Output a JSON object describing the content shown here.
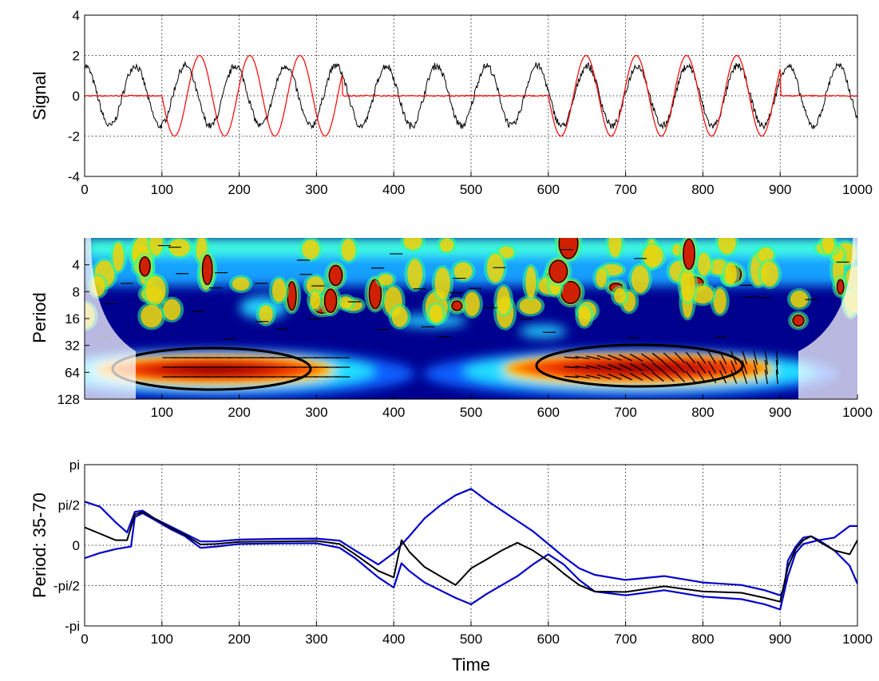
{
  "chart_data": [
    {
      "type": "line",
      "ylabel": "Signal",
      "xlabel": "",
      "xlim": [
        0,
        1000
      ],
      "ylim": [
        -4,
        4
      ],
      "xticks": [
        "0",
        "100",
        "200",
        "300",
        "400",
        "500",
        "600",
        "700",
        "800",
        "900",
        "1000"
      ],
      "yticks": [
        "-4",
        "-2",
        "0",
        "2",
        "4"
      ],
      "grid": true,
      "series": [
        {
          "color": "#000000",
          "description": "continuous sinusoid, period about 65, amplitude about 1.5, with noise",
          "period": 65,
          "amplitude": 1.5
        },
        {
          "color": "#ff0000",
          "description": "intermittent sinusoid, amplitude 2",
          "period": 65,
          "amplitude": 2,
          "active_segments": [
            [
              100,
              333
            ],
            [
              600,
              900
            ]
          ]
        }
      ]
    },
    {
      "type": "heatmap",
      "ylabel": "Period",
      "xlabel": "",
      "xlim": [
        0,
        1000
      ],
      "ylim": [
        128,
        2
      ],
      "yscale": "log2",
      "xticks": [
        "100",
        "200",
        "300",
        "400",
        "500",
        "600",
        "700",
        "800",
        "900",
        "1000"
      ],
      "yticks": [
        "4",
        "8",
        "16",
        "32",
        "64",
        "128"
      ],
      "colormap": "jet",
      "significant_regions": [
        {
          "time": [
            95,
            345
          ],
          "period": [
            38,
            90
          ]
        },
        {
          "time": [
            615,
            915
          ],
          "period": [
            38,
            90
          ]
        }
      ]
    },
    {
      "type": "line",
      "ylabel": "Period: 35-70",
      "xlabel": "Time",
      "xlim": [
        0,
        1000
      ],
      "ylim": [
        -3.1416,
        3.1416
      ],
      "xticks": [
        "0",
        "100",
        "200",
        "300",
        "400",
        "500",
        "600",
        "700",
        "800",
        "900",
        "1000"
      ],
      "yticks": [
        "-pi",
        "-pi/2",
        "0",
        "pi/2",
        "pi"
      ],
      "ytick_values": [
        -3.1416,
        -1.5708,
        0,
        1.5708,
        3.1416
      ],
      "grid": true,
      "series": [
        {
          "color": "#0000cc",
          "role": "upper bound",
          "x": [
            0,
            20,
            40,
            55,
            65,
            75,
            90,
            110,
            130,
            150,
            170,
            200,
            250,
            300,
            330,
            350,
            380,
            400,
            420,
            440,
            460,
            480,
            500,
            520,
            540,
            560,
            580,
            600,
            620,
            640,
            660,
            700,
            750,
            800,
            850,
            880,
            900,
            905,
            910,
            920,
            930,
            940,
            950,
            970,
            990,
            1000
          ],
          "y": [
            1.7,
            1.5,
            0.9,
            0.5,
            1.3,
            1.35,
            1.05,
            0.75,
            0.45,
            0.15,
            0.15,
            0.22,
            0.25,
            0.26,
            0.18,
            -0.2,
            -0.75,
            -0.3,
            0.35,
            1.05,
            1.55,
            1.95,
            2.2,
            1.75,
            1.35,
            0.95,
            0.55,
            0.05,
            -0.45,
            -0.9,
            -1.15,
            -1.35,
            -1.2,
            -1.45,
            -1.55,
            -1.75,
            -1.95,
            -1.7,
            -0.6,
            -0.05,
            0.3,
            0.35,
            0.2,
            0.3,
            0.75,
            0.75
          ]
        },
        {
          "color": "#0000cc",
          "role": "lower bound",
          "x": [
            0,
            20,
            40,
            60,
            65,
            75,
            90,
            110,
            130,
            150,
            170,
            200,
            250,
            300,
            330,
            350,
            380,
            400,
            410,
            420,
            440,
            460,
            480,
            500,
            520,
            540,
            560,
            580,
            600,
            620,
            640,
            660,
            700,
            750,
            800,
            850,
            880,
            900,
            910,
            920,
            930,
            950,
            970,
            990,
            1000
          ],
          "y": [
            -0.5,
            -0.3,
            -0.15,
            -0.05,
            1.1,
            1.25,
            1.0,
            0.65,
            0.35,
            -0.1,
            -0.05,
            0.05,
            0.07,
            0.08,
            -0.1,
            -0.5,
            -1.25,
            -1.65,
            -0.7,
            -1.0,
            -1.45,
            -1.75,
            -2.05,
            -2.3,
            -1.9,
            -1.55,
            -1.2,
            -0.75,
            -0.35,
            -0.75,
            -1.35,
            -1.8,
            -1.95,
            -1.75,
            -2.0,
            -2.1,
            -2.3,
            -2.5,
            -1.2,
            -0.3,
            0.05,
            0.2,
            -0.2,
            -0.8,
            -1.5
          ]
        },
        {
          "color": "#000000",
          "role": "mean phase",
          "x": [
            0,
            20,
            40,
            55,
            65,
            75,
            90,
            110,
            130,
            150,
            170,
            200,
            250,
            300,
            330,
            350,
            380,
            400,
            410,
            420,
            440,
            460,
            480,
            500,
            520,
            540,
            560,
            580,
            600,
            620,
            640,
            660,
            700,
            750,
            800,
            850,
            880,
            900,
            910,
            920,
            930,
            940,
            950,
            970,
            990,
            1000
          ],
          "y": [
            0.7,
            0.45,
            0.2,
            0.2,
            1.2,
            1.3,
            1.05,
            0.7,
            0.4,
            0.03,
            0.05,
            0.13,
            0.15,
            0.17,
            0.05,
            -0.35,
            -1.0,
            -1.25,
            0.2,
            -0.25,
            -0.85,
            -1.2,
            -1.55,
            -0.9,
            -0.55,
            -0.2,
            0.1,
            -0.2,
            -0.6,
            -1.1,
            -1.55,
            -1.8,
            -1.82,
            -1.6,
            -1.8,
            -1.85,
            -2.05,
            -2.2,
            -0.85,
            -0.15,
            0.2,
            0.35,
            0.15,
            -0.2,
            -0.35,
            0.2
          ]
        }
      ]
    }
  ]
}
